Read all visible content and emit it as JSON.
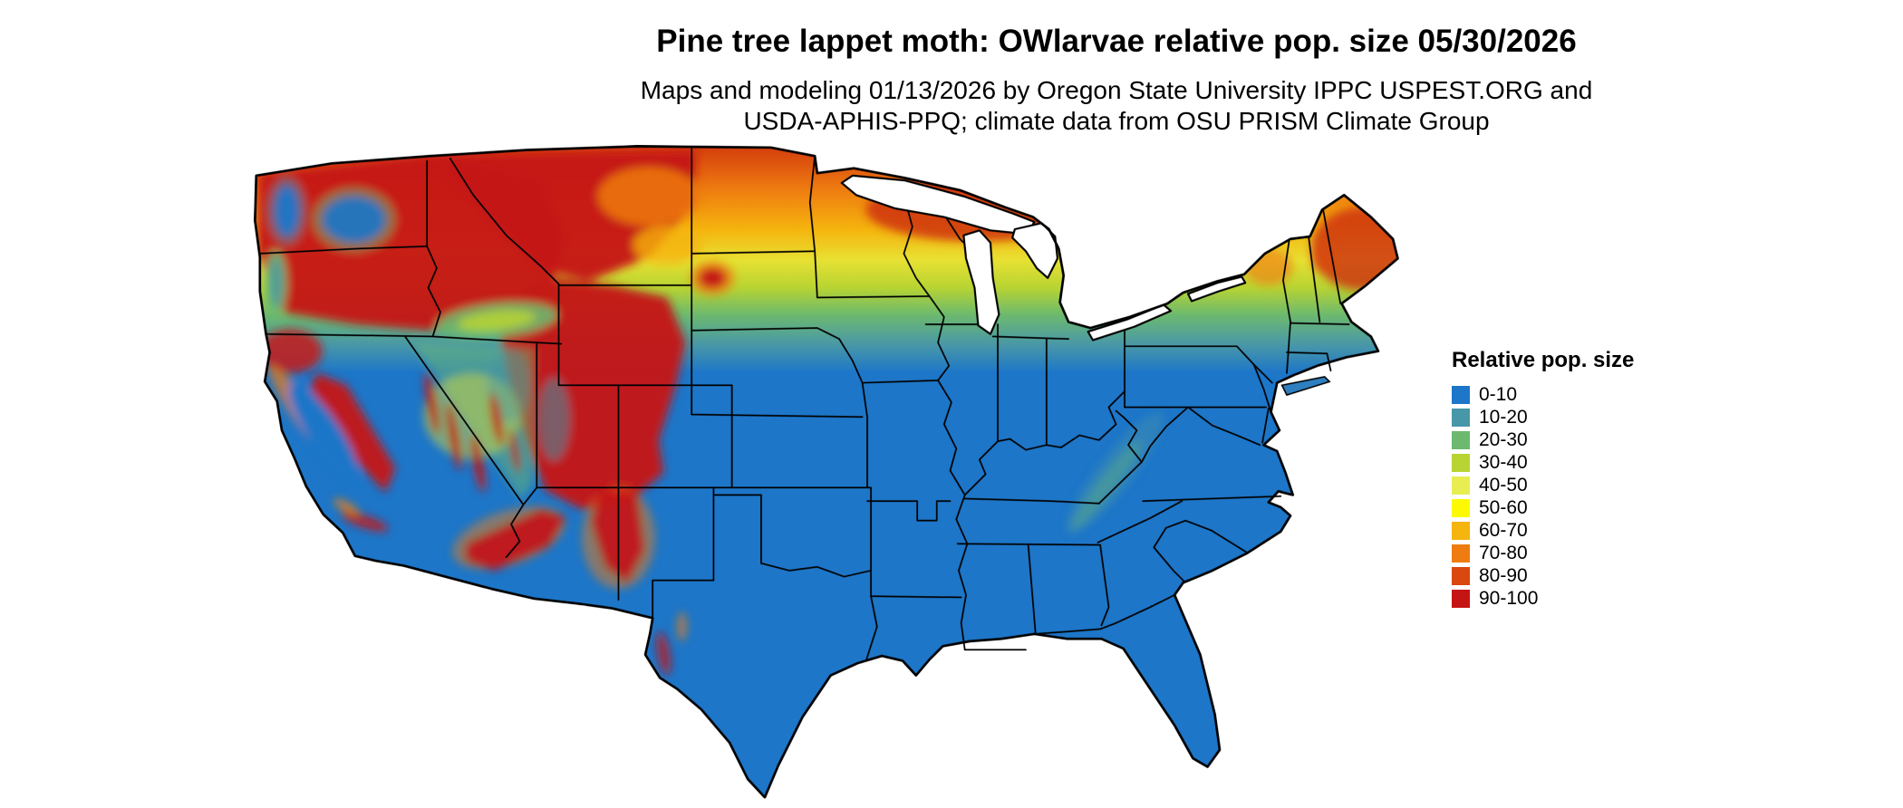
{
  "header": {
    "title": "Pine tree lappet moth: OWlarvae relative pop. size 05/30/2026",
    "subtitle_line1": "Maps and modeling 01/13/2026 by Oregon State University IPPC USPEST.ORG and",
    "subtitle_line2": "USDA-APHIS-PPQ; climate data from OSU PRISM Climate Group"
  },
  "map": {
    "region": "Contiguous United States"
  },
  "legend": {
    "title": "Relative pop. size",
    "items": [
      {
        "label": "0-10",
        "color": "#1d76c8"
      },
      {
        "label": "10-20",
        "color": "#4897a8"
      },
      {
        "label": "20-30",
        "color": "#6cb96f"
      },
      {
        "label": "30-40",
        "color": "#b8d432"
      },
      {
        "label": "40-50",
        "color": "#e8ee52"
      },
      {
        "label": "50-60",
        "color": "#fdf903"
      },
      {
        "label": "60-70",
        "color": "#f5b40e"
      },
      {
        "label": "70-80",
        "color": "#ee7c10"
      },
      {
        "label": "80-90",
        "color": "#d9480e"
      },
      {
        "label": "90-100",
        "color": "#c51414"
      }
    ]
  }
}
